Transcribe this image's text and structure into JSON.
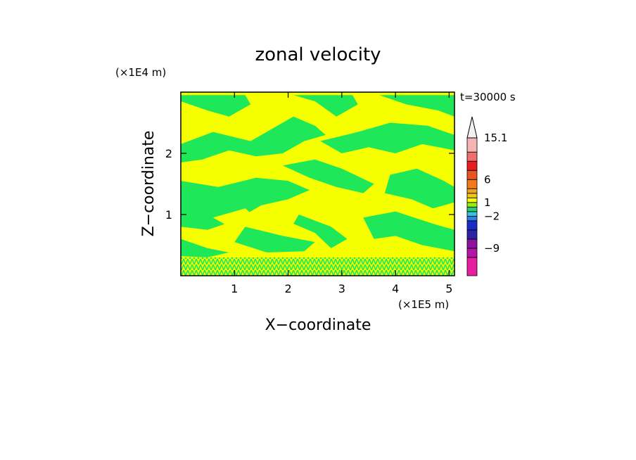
{
  "chart_data": {
    "type": "heatmap",
    "title": "zonal velocity",
    "time_label": "t=30000 s",
    "xlabel": "X−coordinate",
    "ylabel": "Z−coordinate",
    "x_scale_label": "(×1E5 m)",
    "y_scale_label": "(×1E4 m)",
    "xlim": [
      0,
      5.1
    ],
    "ylim": [
      0,
      3.0
    ],
    "x_ticks": [
      1,
      2,
      3,
      4,
      5
    ],
    "y_ticks": [
      1,
      2
    ],
    "x_tick_labels": [
      "1",
      "2",
      "3",
      "4",
      "5"
    ],
    "y_tick_labels": [
      "1",
      "2"
    ],
    "field_colors": {
      "positive": "#f5ff00",
      "negative": "#1ee85a",
      "surface_noise": "#a8f030"
    },
    "colorbar": {
      "label_values": [
        "15.1",
        "6",
        "1",
        "−2",
        "−9"
      ],
      "max_label": "15.1",
      "bands": [
        {
          "lo": -15,
          "hi": -11,
          "color": "#e61ea0"
        },
        {
          "lo": -11,
          "hi": -9,
          "color": "#b414a8"
        },
        {
          "lo": -9,
          "hi": -7,
          "color": "#8a149e"
        },
        {
          "lo": -7,
          "hi": -5,
          "color": "#2b22a6"
        },
        {
          "lo": -5,
          "hi": -3,
          "color": "#1a2cc8"
        },
        {
          "lo": -3,
          "hi": -2,
          "color": "#2e7fe8"
        },
        {
          "lo": -2,
          "hi": -1,
          "color": "#2ec8d8"
        },
        {
          "lo": -1,
          "hi": 0,
          "color": "#21d06a"
        },
        {
          "lo": 0,
          "hi": 1,
          "color": "#9bea1e"
        },
        {
          "lo": 1,
          "hi": 2,
          "color": "#f5ff00"
        },
        {
          "lo": 2,
          "hi": 3,
          "color": "#f0c814"
        },
        {
          "lo": 3,
          "hi": 4,
          "color": "#f5a31e"
        },
        {
          "lo": 4,
          "hi": 6,
          "color": "#f07a1e"
        },
        {
          "lo": 6,
          "hi": 8,
          "color": "#e8551e"
        },
        {
          "lo": 8,
          "hi": 10,
          "color": "#e61e1e"
        },
        {
          "lo": 10,
          "hi": 12,
          "color": "#f06e6e"
        },
        {
          "lo": 12,
          "hi": 15.1,
          "color": "#f5b4b4"
        }
      ],
      "extend_color": "#f5f0f0"
    },
    "contour_regions": [
      {
        "sign": "negative",
        "points": [
          [
            0,
            2.85
          ],
          [
            0.5,
            2.7
          ],
          [
            0.9,
            2.6
          ],
          [
            1.3,
            2.8
          ],
          [
            1.2,
            2.95
          ],
          [
            0,
            2.95
          ]
        ]
      },
      {
        "sign": "negative",
        "points": [
          [
            2.1,
            2.95
          ],
          [
            2.5,
            2.85
          ],
          [
            2.9,
            2.6
          ],
          [
            3.3,
            2.8
          ],
          [
            3.2,
            2.95
          ]
        ]
      },
      {
        "sign": "negative",
        "points": [
          [
            3.7,
            2.95
          ],
          [
            4.2,
            2.8
          ],
          [
            4.8,
            2.7
          ],
          [
            5.1,
            2.6
          ],
          [
            5.1,
            2.95
          ]
        ]
      },
      {
        "sign": "negative",
        "points": [
          [
            0,
            2.15
          ],
          [
            0.6,
            2.35
          ],
          [
            1.3,
            2.2
          ],
          [
            1.8,
            2.45
          ],
          [
            2.1,
            2.6
          ],
          [
            2.5,
            2.45
          ],
          [
            2.7,
            2.3
          ],
          [
            2.3,
            2.2
          ],
          [
            1.9,
            2.0
          ],
          [
            1.4,
            1.95
          ],
          [
            0.9,
            2.05
          ],
          [
            0.4,
            1.9
          ],
          [
            0,
            1.85
          ]
        ]
      },
      {
        "sign": "negative",
        "points": [
          [
            2.6,
            2.2
          ],
          [
            3.3,
            2.35
          ],
          [
            3.9,
            2.5
          ],
          [
            4.6,
            2.45
          ],
          [
            5.1,
            2.3
          ],
          [
            5.1,
            2.05
          ],
          [
            4.5,
            2.15
          ],
          [
            4.0,
            2.0
          ],
          [
            3.5,
            2.1
          ],
          [
            3.0,
            2.0
          ]
        ]
      },
      {
        "sign": "negative",
        "points": [
          [
            0,
            1.55
          ],
          [
            0.7,
            1.45
          ],
          [
            1.4,
            1.6
          ],
          [
            2.0,
            1.55
          ],
          [
            2.4,
            1.4
          ],
          [
            2.0,
            1.25
          ],
          [
            1.5,
            1.15
          ],
          [
            1.0,
            0.9
          ],
          [
            0.5,
            0.75
          ],
          [
            0,
            0.8
          ]
        ]
      },
      {
        "sign": "negative",
        "points": [
          [
            1.9,
            1.8
          ],
          [
            2.5,
            1.9
          ],
          [
            3.0,
            1.75
          ],
          [
            3.6,
            1.5
          ],
          [
            3.4,
            1.35
          ],
          [
            2.9,
            1.45
          ],
          [
            2.4,
            1.6
          ]
        ]
      },
      {
        "sign": "negative",
        "points": [
          [
            3.9,
            1.65
          ],
          [
            4.4,
            1.75
          ],
          [
            4.9,
            1.55
          ],
          [
            5.1,
            1.45
          ],
          [
            5.1,
            1.2
          ],
          [
            4.7,
            1.1
          ],
          [
            4.3,
            1.25
          ],
          [
            3.8,
            1.35
          ]
        ]
      },
      {
        "sign": "negative",
        "points": [
          [
            1.2,
            0.8
          ],
          [
            1.9,
            0.65
          ],
          [
            2.5,
            0.55
          ],
          [
            2.3,
            0.4
          ],
          [
            1.6,
            0.38
          ],
          [
            1.0,
            0.55
          ]
        ]
      },
      {
        "sign": "negative",
        "points": [
          [
            2.2,
            1.0
          ],
          [
            2.8,
            0.8
          ],
          [
            3.1,
            0.6
          ],
          [
            2.8,
            0.45
          ],
          [
            2.5,
            0.7
          ],
          [
            2.1,
            0.85
          ]
        ]
      },
      {
        "sign": "negative",
        "points": [
          [
            3.4,
            0.95
          ],
          [
            4.0,
            1.05
          ],
          [
            4.7,
            0.85
          ],
          [
            5.1,
            0.75
          ],
          [
            5.1,
            0.4
          ],
          [
            4.5,
            0.5
          ],
          [
            4.0,
            0.65
          ],
          [
            3.6,
            0.6
          ]
        ]
      },
      {
        "sign": "negative",
        "points": [
          [
            0,
            0.6
          ],
          [
            0.5,
            0.45
          ],
          [
            0.9,
            0.38
          ],
          [
            0.5,
            0.3
          ],
          [
            0,
            0.32
          ]
        ]
      },
      {
        "sign": "positive",
        "points": [
          [
            0.6,
            0.95
          ],
          [
            1.2,
            1.1
          ],
          [
            1.4,
            0.95
          ],
          [
            0.9,
            0.8
          ]
        ]
      },
      {
        "sign": "positive",
        "points": [
          [
            3.3,
            1.95
          ],
          [
            3.6,
            2.02
          ],
          [
            3.5,
            1.9
          ]
        ]
      }
    ]
  }
}
